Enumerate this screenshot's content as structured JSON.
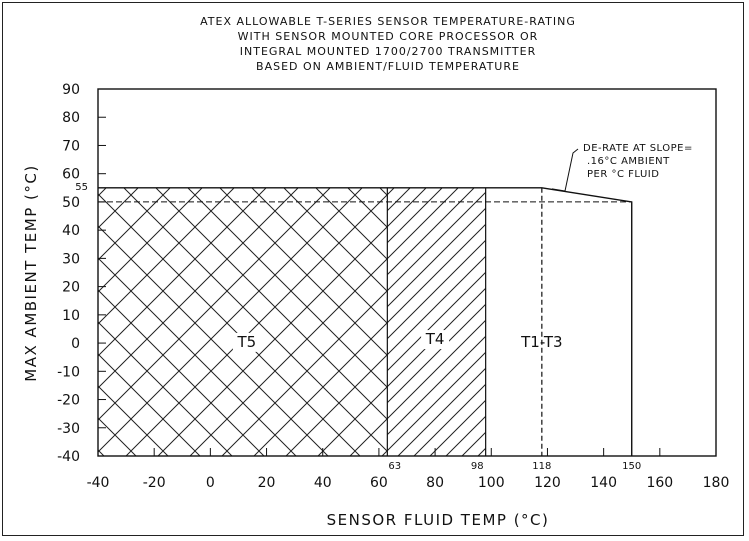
{
  "chart_data": {
    "type": "area",
    "title_lines": [
      "ATEX ALLOWABLE T-SERIES SENSOR TEMPERATURE-RATING",
      "WITH SENSOR MOUNTED CORE PROCESSOR OR",
      "INTEGRAL MOUNTED 1700/2700 TRANSMITTER",
      "BASED ON AMBIENT/FLUID TEMPERATURE"
    ],
    "xlabel": "SENSOR FLUID TEMP (°C)",
    "ylabel": "MAX AMBIENT TEMP (°C)",
    "xlim": [
      -40,
      180
    ],
    "ylim": [
      -40,
      90
    ],
    "xticks": [
      "-40",
      "-20",
      "0",
      "20",
      "40",
      "60",
      "80",
      "100",
      "120",
      "140",
      "160",
      "180"
    ],
    "yticks": [
      "90",
      "80",
      "70",
      "60",
      "50",
      "40",
      "30",
      "20",
      "10",
      "0",
      "-10",
      "-20",
      "-30",
      "-40"
    ],
    "x_markers": [
      {
        "label": "63",
        "x": 63
      },
      {
        "label": "98",
        "x": 98
      },
      {
        "label": "118",
        "x": 118
      },
      {
        "label": "150",
        "x": 150
      }
    ],
    "y_marker": {
      "label": "55",
      "y": 55
    },
    "regions": [
      {
        "name": "T5",
        "x": [
          -40,
          63
        ],
        "pattern": "crosshatch"
      },
      {
        "name": "T4",
        "x": [
          63,
          98
        ],
        "pattern": "diagonal"
      },
      {
        "name": "T1-T3",
        "x": [
          98,
          150
        ],
        "pattern": "none"
      }
    ],
    "boundary": {
      "x": [
        -40,
        118,
        150,
        150
      ],
      "y": [
        55,
        55,
        50,
        -40
      ]
    },
    "reference_line_y": 50,
    "annotation_lines": [
      "DE-RATE AT SLOPE=",
      ".16°C AMBIENT",
      "PER °C FLUID"
    ],
    "grid": false
  }
}
